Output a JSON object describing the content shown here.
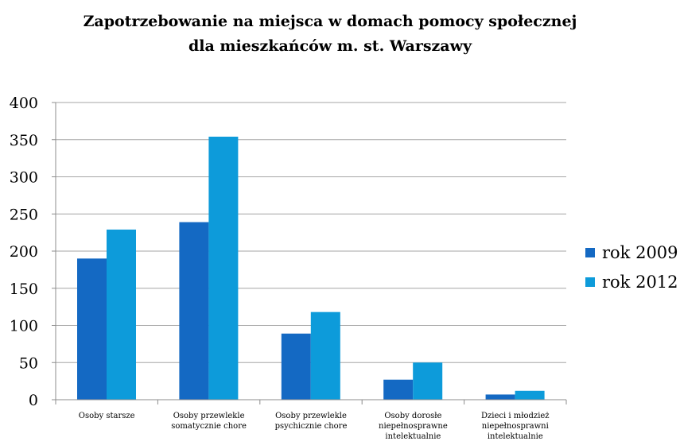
{
  "chart_data": {
    "type": "bar",
    "title": [
      "Zapotrzebowanie na miejsca w domach pomocy społecznej",
      "dla mieszkańców m. st. Warszawy"
    ],
    "categories": [
      [
        "Osoby starsze"
      ],
      [
        "Osoby przewlekle",
        "somatycznie chore"
      ],
      [
        "Osoby przewlekle",
        "psychicznie chore"
      ],
      [
        "Osoby dorosłe",
        "niepełnosprawne",
        "intelektualnie"
      ],
      [
        "Dzieci i młodzież",
        "niepełnosprawni",
        "intelektualnie"
      ]
    ],
    "series": [
      {
        "name": "rok 2009",
        "color": "#1469C3",
        "values": [
          190,
          239,
          89,
          27,
          7
        ]
      },
      {
        "name": "rok 2012",
        "color": "#0D9BDA",
        "values": [
          229,
          354,
          118,
          50,
          12
        ]
      }
    ],
    "ylim": [
      0,
      400
    ],
    "yticks": [
      0,
      50,
      100,
      150,
      200,
      250,
      300,
      350,
      400
    ],
    "grid": true,
    "legend_position": "right"
  }
}
